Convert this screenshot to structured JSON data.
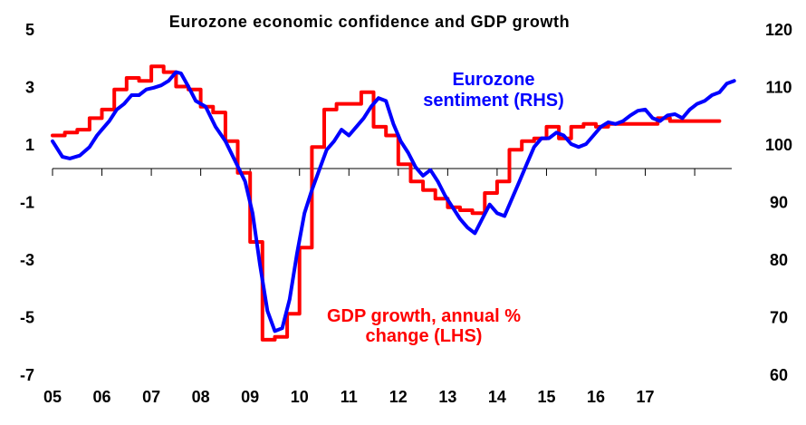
{
  "chart_data": {
    "type": "line",
    "title": "Eurozone economic confidence and GDP  growth",
    "xlabel": "",
    "ylabel": "",
    "x_tick_labels": [
      "05",
      "06",
      "07",
      "08",
      "09",
      "10",
      "11",
      "12",
      "13",
      "14",
      "15",
      "16",
      "17"
    ],
    "xlim": [
      2005.0,
      2018.75
    ],
    "left_axis": {
      "ticks": [
        5,
        3,
        1,
        -1,
        -3,
        -5,
        -7
      ],
      "ylim": [
        -7,
        5
      ]
    },
    "right_axis": {
      "ticks": [
        120,
        110,
        100,
        90,
        80,
        70,
        60
      ],
      "ylim": [
        60,
        120
      ]
    },
    "grid": false,
    "legend": "none",
    "series": [
      {
        "name": "GDP growth, annual % change (LHS)",
        "label_lines": [
          "GDP growth, annual %",
          "change (LHS)"
        ],
        "axis": "left",
        "color": "#ff0000",
        "step": true,
        "x": [
          2005.0,
          2005.25,
          2005.5,
          2005.75,
          2006.0,
          2006.25,
          2006.5,
          2006.75,
          2007.0,
          2007.25,
          2007.5,
          2007.75,
          2008.0,
          2008.25,
          2008.5,
          2008.75,
          2009.0,
          2009.25,
          2009.5,
          2009.75,
          2010.0,
          2010.25,
          2010.5,
          2010.75,
          2011.0,
          2011.25,
          2011.5,
          2011.75,
          2012.0,
          2012.25,
          2012.5,
          2012.75,
          2013.0,
          2013.25,
          2013.5,
          2013.75,
          2014.0,
          2014.25,
          2014.5,
          2014.75,
          2015.0,
          2015.25,
          2015.5,
          2015.75,
          2016.0,
          2016.25,
          2016.5,
          2016.75,
          2017.0,
          2017.25,
          2017.5,
          2017.75,
          2018.0,
          2018.25
        ],
        "values": [
          1.3,
          1.4,
          1.5,
          1.9,
          2.2,
          2.9,
          3.3,
          3.2,
          3.7,
          3.5,
          3.0,
          2.9,
          2.3,
          2.1,
          1.1,
          0.0,
          -2.4,
          -5.8,
          -5.7,
          -4.9,
          -2.6,
          0.9,
          2.2,
          2.4,
          2.4,
          2.8,
          1.6,
          1.3,
          0.3,
          -0.3,
          -0.6,
          -0.9,
          -1.2,
          -1.3,
          -1.4,
          -0.7,
          -0.3,
          0.8,
          1.1,
          1.2,
          1.6,
          1.2,
          1.6,
          1.7,
          1.6,
          1.7,
          1.7,
          1.7,
          1.7,
          1.9,
          1.8,
          1.8,
          1.8,
          1.8
        ]
      },
      {
        "name": "Eurozone sentiment (RHS)",
        "label_lines": [
          "Eurozone",
          "sentiment (RHS)"
        ],
        "axis": "right",
        "color": "#0000ff",
        "step": false,
        "x": [
          2005.0,
          2005.2,
          2005.35,
          2005.55,
          2005.75,
          2005.9,
          2006.0,
          2006.15,
          2006.3,
          2006.45,
          2006.6,
          2006.75,
          2006.9,
          2007.05,
          2007.2,
          2007.35,
          2007.5,
          2007.6,
          2007.75,
          2007.9,
          2008.1,
          2008.3,
          2008.5,
          2008.7,
          2008.9,
          2009.05,
          2009.2,
          2009.35,
          2009.5,
          2009.65,
          2009.8,
          2009.95,
          2010.1,
          2010.25,
          2010.4,
          2010.55,
          2010.7,
          2010.85,
          2011.0,
          2011.15,
          2011.3,
          2011.45,
          2011.6,
          2011.75,
          2011.9,
          2012.05,
          2012.2,
          2012.35,
          2012.5,
          2012.65,
          2012.8,
          2012.95,
          2013.1,
          2013.25,
          2013.4,
          2013.55,
          2013.7,
          2013.85,
          2014.0,
          2014.15,
          2014.3,
          2014.45,
          2014.6,
          2014.75,
          2014.9,
          2015.05,
          2015.2,
          2015.35,
          2015.5,
          2015.65,
          2015.8,
          2015.95,
          2016.1,
          2016.25,
          2016.4,
          2016.55,
          2016.7,
          2016.85,
          2017.0,
          2017.15,
          2017.3,
          2017.45,
          2017.6,
          2017.75,
          2017.9,
          2018.05,
          2018.2,
          2018.35,
          2018.5,
          2018.65,
          2018.8
        ],
        "values": [
          100.5,
          97.8,
          97.5,
          98.0,
          99.5,
          101.5,
          102.5,
          104.0,
          106.0,
          107.0,
          108.5,
          108.5,
          109.5,
          109.8,
          110.2,
          111.0,
          112.5,
          112.3,
          110.0,
          107.5,
          106.5,
          103.0,
          100.5,
          97.0,
          93.5,
          88.0,
          79.0,
          71.0,
          67.5,
          68.0,
          73.0,
          81.0,
          88.0,
          92.0,
          95.5,
          99.0,
          100.5,
          102.5,
          101.5,
          103.0,
          104.5,
          106.5,
          108.0,
          107.5,
          103.5,
          100.5,
          98.5,
          96.0,
          94.5,
          95.5,
          93.5,
          91.0,
          89.0,
          87.0,
          85.5,
          84.5,
          87.0,
          89.5,
          88.0,
          87.5,
          90.5,
          93.5,
          96.5,
          99.5,
          101.0,
          101.0,
          102.0,
          101.5,
          100.0,
          99.5,
          100.0,
          101.5,
          103.0,
          103.8,
          103.5,
          104.0,
          105.0,
          105.8,
          106.0,
          104.5,
          104.0,
          105.0,
          105.2,
          104.5,
          106.0,
          107.0,
          107.5,
          108.5,
          109.0,
          110.5,
          111.0
        ]
      }
    ]
  }
}
